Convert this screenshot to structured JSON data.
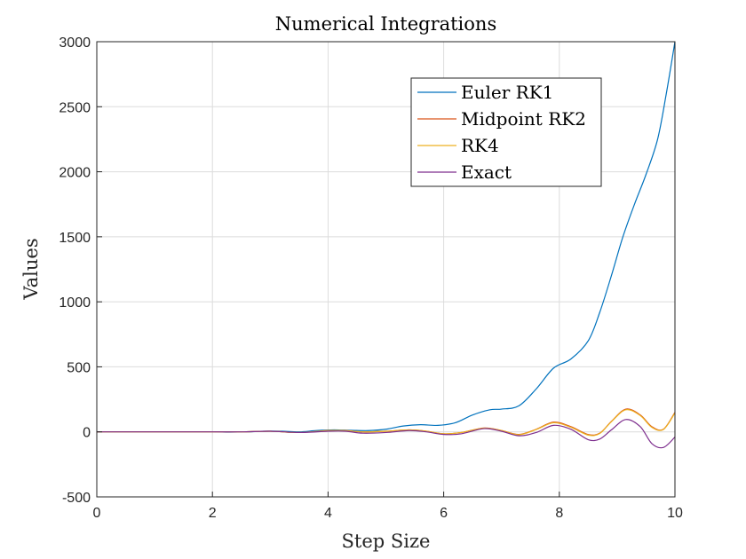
{
  "chart_data": {
    "type": "line",
    "title": "Numerical Integrations",
    "xlabel": "Step Size",
    "ylabel": "Values",
    "xlim": [
      0,
      10
    ],
    "ylim": [
      -500,
      3000
    ],
    "xticks": [
      0,
      2,
      4,
      6,
      8,
      10
    ],
    "yticks": [
      -500,
      0,
      500,
      1000,
      1500,
      2000,
      2500,
      3000
    ],
    "grid": true,
    "legend_position": "top-right (inside)",
    "series": [
      {
        "name": "Euler RK1",
        "color": "#0072BD",
        "x": [
          0,
          0.5,
          1,
          1.5,
          2,
          2.3,
          2.6,
          2.9,
          3.2,
          3.5,
          3.8,
          4.1,
          4.4,
          4.7,
          5.0,
          5.3,
          5.6,
          5.9,
          6.2,
          6.5,
          6.8,
          7.0,
          7.3,
          7.6,
          7.9,
          8.2,
          8.5,
          8.7,
          8.9,
          9.1,
          9.3,
          9.5,
          9.7,
          9.85,
          10.0
        ],
        "y": [
          0,
          0,
          0,
          0,
          0,
          -2,
          0,
          5,
          5,
          0,
          10,
          15,
          12,
          10,
          20,
          45,
          55,
          50,
          70,
          130,
          170,
          175,
          200,
          330,
          490,
          560,
          700,
          920,
          1200,
          1500,
          1750,
          1980,
          2250,
          2600,
          3000
        ]
      },
      {
        "name": "Midpoint RK2",
        "color": "#D95319",
        "x": [
          0,
          0.5,
          1,
          1.5,
          2,
          2.5,
          3.0,
          3.5,
          4.0,
          4.3,
          4.6,
          5.0,
          5.4,
          5.7,
          6.0,
          6.3,
          6.7,
          7.0,
          7.3,
          7.6,
          7.9,
          8.2,
          8.5,
          8.7,
          8.9,
          9.15,
          9.4,
          9.6,
          9.8,
          10.0
        ],
        "y": [
          0,
          0,
          0,
          0,
          0,
          0,
          5,
          -5,
          10,
          10,
          0,
          5,
          15,
          5,
          -15,
          -5,
          30,
          10,
          -20,
          20,
          75,
          40,
          -20,
          -10,
          80,
          175,
          130,
          40,
          20,
          150
        ]
      },
      {
        "name": "RK4",
        "color": "#EDB120",
        "x": [
          0,
          0.5,
          1,
          1.5,
          2,
          2.5,
          3.0,
          3.5,
          4.0,
          4.3,
          4.6,
          5.0,
          5.4,
          5.7,
          6.0,
          6.3,
          6.7,
          7.0,
          7.3,
          7.6,
          7.9,
          8.2,
          8.5,
          8.7,
          8.9,
          9.15,
          9.4,
          9.6,
          9.8,
          10.0
        ],
        "y": [
          0,
          0,
          0,
          0,
          0,
          0,
          5,
          -5,
          10,
          10,
          0,
          5,
          15,
          5,
          -15,
          -5,
          28,
          10,
          -22,
          18,
          70,
          35,
          -25,
          -12,
          78,
          170,
          125,
          35,
          18,
          145
        ]
      },
      {
        "name": "Exact",
        "color": "#7E2F8E",
        "x": [
          0,
          0.5,
          1,
          1.5,
          2,
          2.5,
          3.0,
          3.5,
          4.0,
          4.3,
          4.6,
          5.0,
          5.4,
          5.7,
          6.0,
          6.3,
          6.7,
          7.0,
          7.3,
          7.6,
          7.9,
          8.2,
          8.5,
          8.7,
          8.9,
          9.15,
          9.4,
          9.6,
          9.8,
          10.0
        ],
        "y": [
          0,
          0,
          0,
          0,
          0,
          0,
          5,
          -5,
          5,
          5,
          -10,
          -5,
          10,
          0,
          -20,
          -15,
          25,
          5,
          -30,
          -5,
          50,
          20,
          -60,
          -55,
          15,
          95,
          40,
          -90,
          -120,
          -40
        ]
      }
    ]
  }
}
